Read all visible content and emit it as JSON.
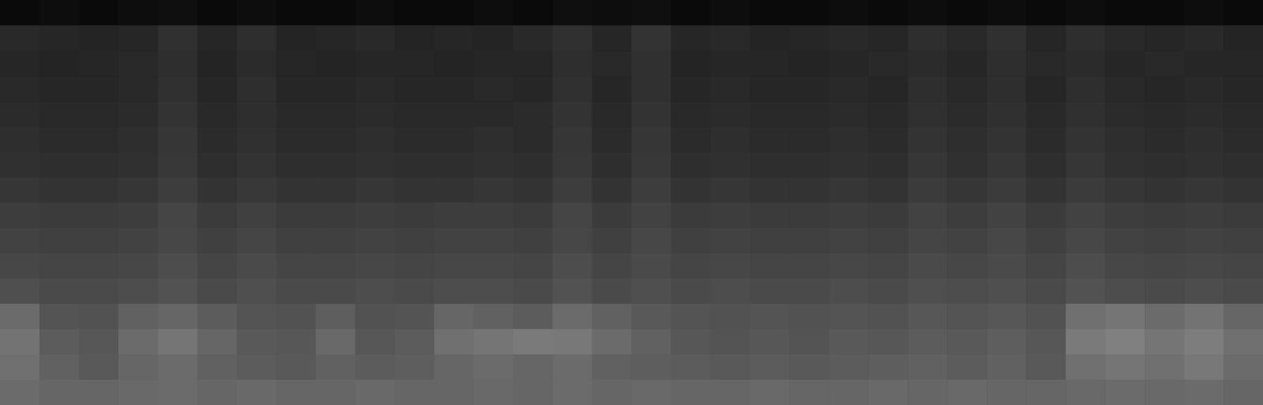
{
  "chart_data": {
    "type": "heatmap",
    "tick_labels": false,
    "color": "#ffffff",
    "zlim": [
      0,
      100
    ],
    "cells": [
      [
        4,
        5,
        4,
        5,
        6,
        4,
        5,
        4,
        4,
        5,
        4,
        4,
        5,
        4,
        6,
        5,
        6,
        4,
        5,
        4,
        4,
        5,
        4,
        5,
        4,
        5,
        4,
        5,
        4,
        4,
        5,
        4
      ],
      [
        16,
        15,
        14,
        15,
        19,
        15,
        18,
        14,
        15,
        16,
        14,
        15,
        14,
        16,
        19,
        15,
        20,
        15,
        16,
        14,
        15,
        16,
        15,
        18,
        16,
        19,
        15,
        18,
        16,
        15,
        16,
        14
      ],
      [
        15,
        14,
        15,
        16,
        18,
        14,
        17,
        15,
        14,
        15,
        15,
        14,
        15,
        15,
        18,
        16,
        19,
        14,
        15,
        15,
        14,
        15,
        16,
        17,
        15,
        18,
        16,
        17,
        15,
        16,
        15,
        15
      ],
      [
        16,
        15,
        15,
        16,
        19,
        15,
        18,
        15,
        15,
        16,
        15,
        15,
        16,
        15,
        19,
        15,
        19,
        15,
        16,
        15,
        15,
        16,
        15,
        18,
        16,
        18,
        15,
        18,
        16,
        15,
        16,
        15
      ],
      [
        17,
        16,
        16,
        17,
        20,
        16,
        18,
        16,
        16,
        17,
        16,
        16,
        16,
        17,
        20,
        16,
        20,
        16,
        17,
        16,
        16,
        17,
        16,
        19,
        17,
        19,
        16,
        19,
        17,
        16,
        17,
        16
      ],
      [
        18,
        17,
        17,
        18,
        21,
        17,
        19,
        17,
        17,
        18,
        17,
        17,
        18,
        17,
        21,
        17,
        21,
        17,
        18,
        17,
        17,
        18,
        17,
        20,
        18,
        20,
        17,
        20,
        18,
        17,
        18,
        17
      ],
      [
        19,
        18,
        18,
        19,
        22,
        18,
        20,
        18,
        18,
        19,
        18,
        18,
        19,
        18,
        22,
        18,
        22,
        18,
        19,
        18,
        18,
        19,
        18,
        21,
        19,
        21,
        18,
        21,
        19,
        18,
        19,
        18
      ],
      [
        21,
        20,
        20,
        21,
        24,
        20,
        22,
        20,
        20,
        21,
        20,
        20,
        21,
        20,
        24,
        20,
        24,
        20,
        21,
        20,
        20,
        21,
        20,
        23,
        21,
        23,
        20,
        23,
        21,
        20,
        21,
        20
      ],
      [
        24,
        23,
        23,
        24,
        27,
        23,
        25,
        23,
        23,
        24,
        23,
        24,
        24,
        23,
        27,
        23,
        26,
        23,
        24,
        23,
        23,
        24,
        23,
        26,
        24,
        26,
        23,
        26,
        24,
        23,
        24,
        23
      ],
      [
        26,
        25,
        25,
        26,
        28,
        25,
        27,
        25,
        25,
        26,
        25,
        26,
        26,
        25,
        28,
        25,
        28,
        25,
        26,
        25,
        25,
        26,
        25,
        27,
        26,
        28,
        25,
        28,
        26,
        25,
        26,
        25
      ],
      [
        28,
        27,
        27,
        28,
        30,
        27,
        29,
        27,
        27,
        28,
        27,
        28,
        28,
        27,
        30,
        27,
        29,
        27,
        28,
        27,
        27,
        28,
        27,
        29,
        28,
        29,
        27,
        30,
        28,
        27,
        28,
        27
      ],
      [
        31,
        29,
        29,
        30,
        32,
        29,
        31,
        29,
        29,
        30,
        29,
        30,
        30,
        29,
        32,
        29,
        31,
        29,
        30,
        29,
        29,
        30,
        29,
        31,
        30,
        31,
        29,
        32,
        30,
        29,
        30,
        29
      ],
      [
        42,
        33,
        32,
        38,
        40,
        36,
        33,
        32,
        37,
        32,
        33,
        40,
        38,
        36,
        42,
        38,
        35,
        33,
        32,
        33,
        32,
        33,
        32,
        34,
        33,
        34,
        32,
        44,
        46,
        42,
        45,
        40
      ],
      [
        45,
        36,
        34,
        42,
        46,
        40,
        35,
        34,
        41,
        34,
        36,
        44,
        46,
        48,
        47,
        42,
        38,
        34,
        33,
        34,
        33,
        35,
        34,
        36,
        35,
        37,
        34,
        48,
        50,
        46,
        49,
        44
      ],
      [
        44,
        38,
        35,
        40,
        42,
        38,
        36,
        35,
        38,
        36,
        37,
        40,
        42,
        40,
        42,
        38,
        37,
        36,
        35,
        36,
        35,
        36,
        37,
        38,
        36,
        38,
        35,
        44,
        46,
        44,
        47,
        42
      ],
      [
        42,
        40,
        40,
        41,
        42,
        40,
        41,
        40,
        40,
        41,
        40,
        40,
        41,
        40,
        42,
        40,
        41,
        40,
        40,
        41,
        40,
        40,
        41,
        40,
        41,
        40,
        40,
        41,
        42,
        41,
        42,
        40
      ]
    ]
  }
}
